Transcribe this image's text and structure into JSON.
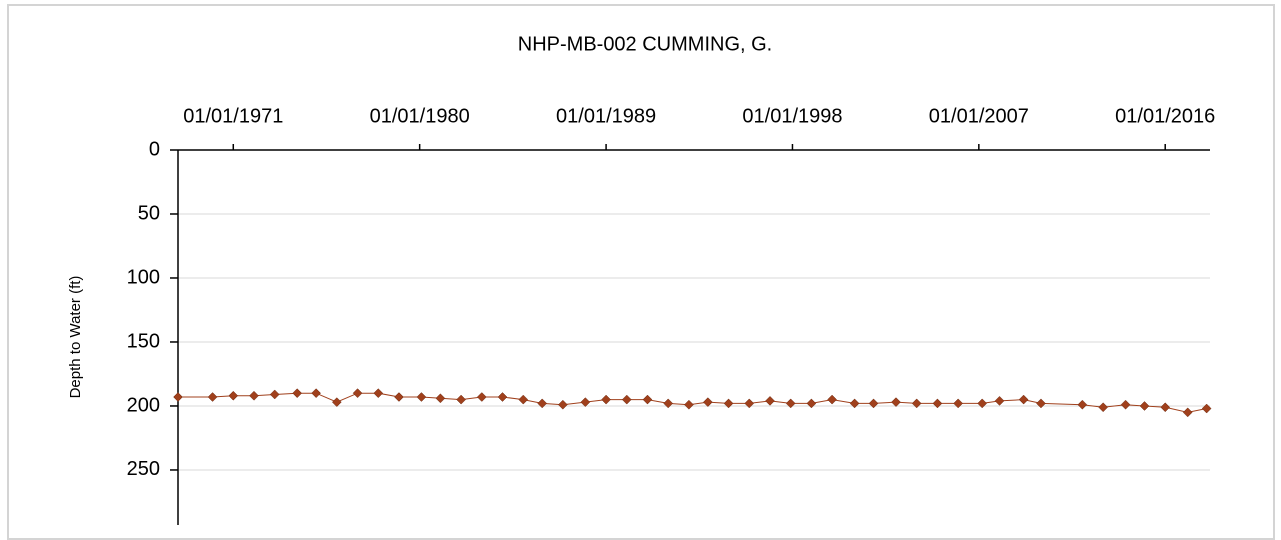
{
  "chart_data": {
    "type": "line",
    "title": "NHP-MB-002 CUMMING, G.",
    "ylabel": "Depth to Water (ft)",
    "y_inverted": true,
    "grid": true,
    "color": "#a0401c",
    "xlim": [
      "1968-05-01",
      "2018-03-01"
    ],
    "xticks": [
      {
        "value": "1971-01-01",
        "label": "01/01/1971"
      },
      {
        "value": "1980-01-01",
        "label": "01/01/1980"
      },
      {
        "value": "1989-01-01",
        "label": "01/01/1989"
      },
      {
        "value": "1998-01-01",
        "label": "01/01/1998"
      },
      {
        "value": "2007-01-01",
        "label": "01/01/2007"
      },
      {
        "value": "2016-01-01",
        "label": "01/01/2016"
      }
    ],
    "ylim": [
      0,
      293
    ],
    "yticks": [
      0,
      50,
      100,
      150,
      200,
      250
    ],
    "x": [
      "1968-05-01",
      "1970-01-01",
      "1971-01-01",
      "1972-01-01",
      "1973-01-01",
      "1974-02-01",
      "1975-01-01",
      "1976-01-01",
      "1977-01-01",
      "1978-01-01",
      "1979-01-01",
      "1980-02-01",
      "1981-01-01",
      "1982-01-01",
      "1983-01-01",
      "1984-01-01",
      "1985-01-01",
      "1985-12-01",
      "1986-12-01",
      "1988-01-01",
      "1989-01-01",
      "1990-01-01",
      "1991-01-01",
      "1992-01-01",
      "1993-01-01",
      "1993-12-01",
      "1994-12-01",
      "1995-12-01",
      "1996-12-01",
      "1997-12-01",
      "1998-12-01",
      "1999-12-01",
      "2001-01-01",
      "2001-12-01",
      "2003-01-01",
      "2004-01-01",
      "2005-01-01",
      "2006-01-01",
      "2007-03-01",
      "2008-01-01",
      "2009-03-01",
      "2010-01-01",
      "2012-01-01",
      "2013-01-01",
      "2014-02-01",
      "2015-01-01",
      "2016-01-01",
      "2017-02-01",
      "2018-01-01"
    ],
    "values": [
      193,
      193,
      192,
      192,
      191,
      190,
      190,
      197,
      190,
      190,
      193,
      193,
      194,
      195,
      193,
      193,
      195,
      198,
      199,
      197,
      195,
      195,
      195,
      198,
      199,
      197,
      198,
      198,
      196,
      198,
      198,
      195,
      198,
      198,
      197,
      198,
      198,
      198,
      198,
      196,
      195,
      198,
      199,
      201,
      199,
      200,
      201,
      205,
      202
    ]
  }
}
